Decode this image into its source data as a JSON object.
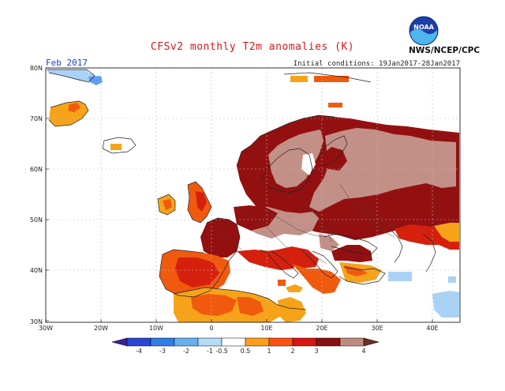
{
  "header": {
    "title": "CFSv2 monthly T2m anomalies (K)",
    "period": "Feb 2017",
    "initial_conditions": "Initial conditions: 19Jan2017-28Jan2017",
    "agency": "NWS/NCEP/CPC",
    "logo_text": "NOAA"
  },
  "axes": {
    "lat_labels": [
      "80N",
      "70N",
      "60N",
      "50N",
      "40N",
      "30N"
    ],
    "lon_labels": [
      "30W",
      "20W",
      "10W",
      "0",
      "10E",
      "20E",
      "30E",
      "40E"
    ]
  },
  "colorbar": {
    "labels": [
      "-4",
      "-3",
      "-2",
      "-1",
      "-0.5",
      "0.5",
      "1",
      "2",
      "3",
      "4"
    ],
    "colors": [
      "#3a1f9c",
      "#2b45d6",
      "#2f7de6",
      "#67b0f0",
      "#b5dcf7",
      "#ffffff",
      "#ff9e1a",
      "#ff5010",
      "#d81510",
      "#8a1010",
      "#bf8a80"
    ]
  },
  "legend": {
    "anomaly_colors": {
      "cold_light": "#aad2f5",
      "cold_mid": "#5f9ff0",
      "warm_05_1": "#f6a31a",
      "warm_1_2": "#f05a0e",
      "warm_2_3": "#d6200e",
      "warm_3_4": "#931011",
      "warm_gt4": "#c29087"
    }
  }
}
